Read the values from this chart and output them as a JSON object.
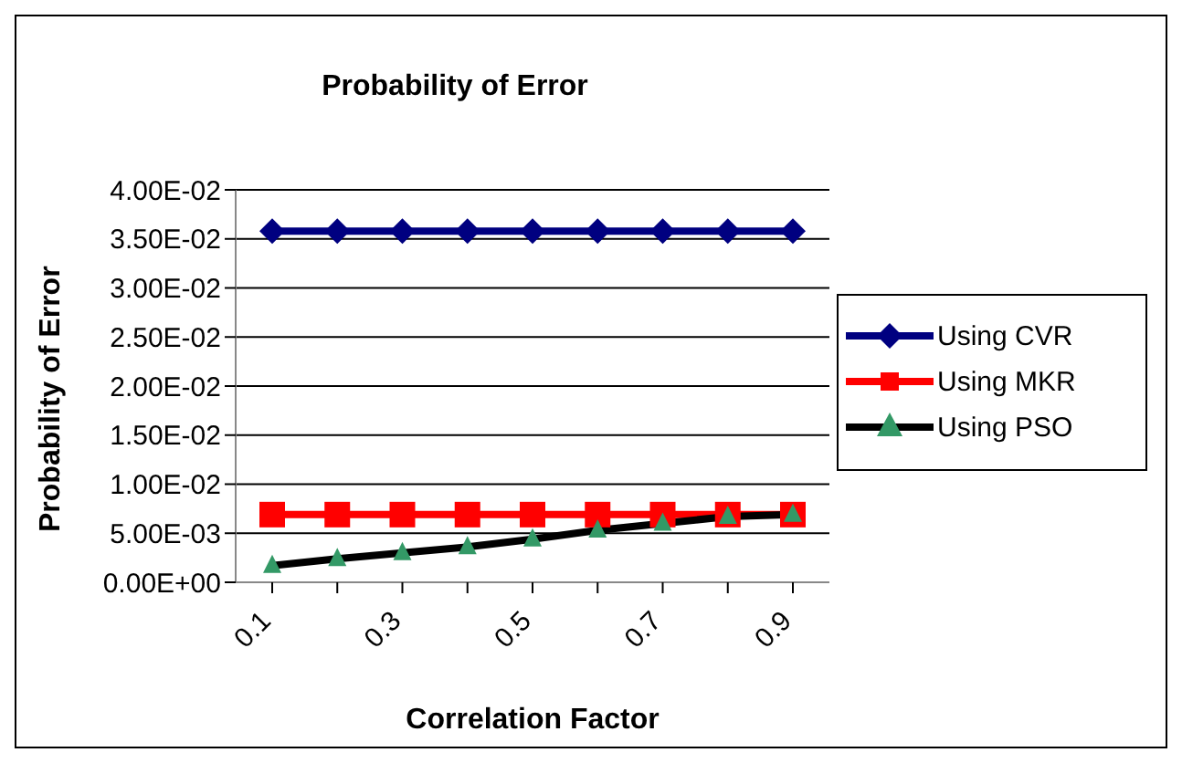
{
  "chart_data": {
    "type": "line",
    "title": "Probability of Error",
    "xlabel": "Correlation Factor",
    "ylabel": "Probability of Error",
    "categories": [
      "0.1",
      null,
      "0.3",
      null,
      "0.5",
      null,
      "0.7",
      null,
      "0.9"
    ],
    "series": [
      {
        "name": "Using CVR",
        "color": "#000080",
        "marker": "diamond",
        "values": [
          0.0358,
          0.0358,
          0.0358,
          0.0358,
          0.0358,
          0.0358,
          0.0358,
          0.0358,
          0.0358
        ]
      },
      {
        "name": "Using MKR",
        "color": "#ff0000",
        "marker": "square",
        "values": [
          0.0069,
          0.0069,
          0.0069,
          0.0069,
          0.0069,
          0.0069,
          0.0069,
          0.0069,
          0.0069
        ]
      },
      {
        "name": "Using PSO",
        "color": "#000000",
        "marker": "triangle",
        "values": [
          0.0017,
          0.0024,
          0.003,
          0.0036,
          0.0044,
          0.0053,
          0.006,
          0.0067,
          0.0069
        ]
      }
    ],
    "ylim": [
      0,
      0.04
    ],
    "yticks": [
      {
        "value": 0,
        "label": "0.00E+00"
      },
      {
        "value": 0.005,
        "label": "5.00E-03"
      },
      {
        "value": 0.01,
        "label": "1.00E-02"
      },
      {
        "value": 0.015,
        "label": "1.50E-02"
      },
      {
        "value": 0.02,
        "label": "2.00E-02"
      },
      {
        "value": 0.025,
        "label": "2.50E-02"
      },
      {
        "value": 0.03,
        "label": "3.00E-02"
      },
      {
        "value": 0.035,
        "label": "3.50E-02"
      },
      {
        "value": 0.04,
        "label": "4.00E-02"
      }
    ],
    "grid": "y",
    "legend": "right"
  }
}
